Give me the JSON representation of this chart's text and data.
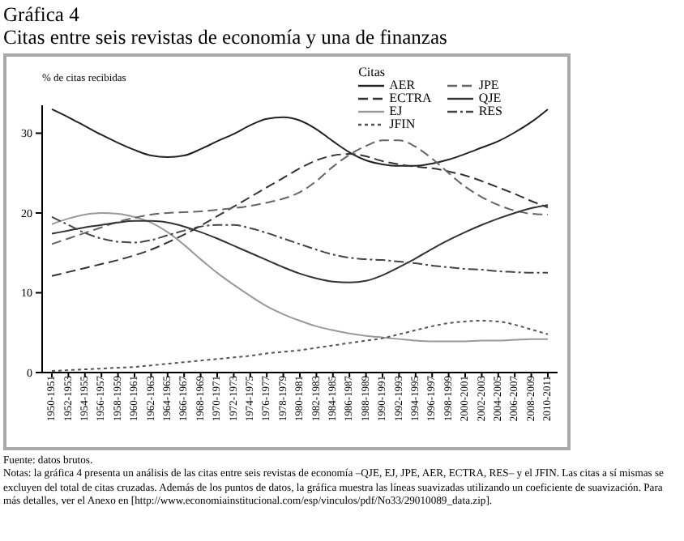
{
  "chart_data": {
    "type": "line",
    "title": "Gráfica 4",
    "subtitle": "Citas entre seis revistas de economía y una de finanzas",
    "ylabel": "% de citas recibidas",
    "legend_title": "Citas",
    "legend": "top right",
    "grid": false,
    "marker": "none",
    "categories": [
      "1950-1951",
      "1952-1953",
      "1954-1955",
      "1956-1957",
      "1958-1959",
      "1960-1961",
      "1962-1963",
      "1964-1965",
      "1966-1967",
      "1968-1969",
      "1970-1971",
      "1972-1973",
      "1974-1975",
      "1976-1977",
      "1978-1979",
      "1980-1981",
      "1982-1983",
      "1984-1985",
      "1986-1987",
      "1988-1989",
      "1990-1991",
      "1992-1993",
      "1994-1995",
      "1996-1997",
      "1998-1999",
      "2000-2001",
      "2002-2003",
      "2004-2005",
      "2006-2007",
      "2008-2009",
      "2010-2011"
    ],
    "ylim": [
      0,
      33.5
    ],
    "yticks": [
      0,
      10,
      20,
      30
    ],
    "series": [
      {
        "name": "AER",
        "color": "#222222",
        "line_style": "solid",
        "values": [
          33,
          32,
          30.9,
          29.8,
          28.8,
          27.9,
          27.2,
          27.0,
          27.2,
          28.0,
          29.0,
          29.9,
          31.0,
          31.8,
          32.0,
          31.6,
          30.5,
          29.0,
          27.6,
          26.6,
          26.1,
          25.9,
          25.9,
          26.2,
          26.7,
          27.4,
          28.2,
          29.0,
          30.1,
          31.4,
          33.0
        ]
      },
      {
        "name": "ECTRA",
        "color": "#333333",
        "line_style": "dashed",
        "values": [
          12.1,
          12.6,
          13.1,
          13.6,
          14.1,
          14.7,
          15.4,
          16.3,
          17.3,
          18.4,
          19.6,
          20.8,
          22.0,
          23.2,
          24.4,
          25.6,
          26.6,
          27.2,
          27.4,
          27.1,
          26.5,
          26.1,
          25.8,
          25.6,
          25.2,
          24.7,
          24.0,
          23.2,
          22.4,
          21.5,
          20.7
        ]
      },
      {
        "name": "EJ",
        "color": "#9a9a9a",
        "line_style": "solid",
        "values": [
          18.6,
          19.3,
          19.8,
          20.0,
          19.9,
          19.5,
          18.8,
          17.6,
          16.0,
          14.2,
          12.5,
          11.0,
          9.6,
          8.3,
          7.3,
          6.5,
          5.8,
          5.3,
          4.9,
          4.6,
          4.4,
          4.2,
          4.0,
          3.9,
          3.9,
          3.9,
          4.0,
          4.0,
          4.1,
          4.2,
          4.2
        ]
      },
      {
        "name": "JFIN",
        "color": "#555555",
        "line_style": "dotted",
        "values": [
          0.2,
          0.3,
          0.4,
          0.5,
          0.6,
          0.7,
          0.9,
          1.1,
          1.3,
          1.5,
          1.7,
          1.9,
          2.1,
          2.4,
          2.6,
          2.8,
          3.1,
          3.4,
          3.7,
          4.0,
          4.3,
          4.8,
          5.3,
          5.8,
          6.2,
          6.4,
          6.5,
          6.4,
          6.0,
          5.4,
          4.8
        ]
      },
      {
        "name": "JPE",
        "color": "#666666",
        "line_style": "dashed",
        "values": [
          16.1,
          16.8,
          17.5,
          18.2,
          18.9,
          19.4,
          19.8,
          20.0,
          20.1,
          20.2,
          20.4,
          20.6,
          20.9,
          21.3,
          21.8,
          22.6,
          24.0,
          25.8,
          27.3,
          28.4,
          29.1,
          29.1,
          28.3,
          26.8,
          25.0,
          23.3,
          22.0,
          21.0,
          20.3,
          19.9,
          19.8
        ]
      },
      {
        "name": "QJE",
        "color": "#333333",
        "line_style": "solid",
        "values": [
          17.4,
          17.8,
          18.2,
          18.5,
          18.8,
          19.0,
          19.0,
          18.8,
          18.3,
          17.6,
          16.8,
          15.9,
          15.0,
          14.1,
          13.2,
          12.4,
          11.8,
          11.4,
          11.3,
          11.5,
          12.2,
          13.2,
          14.3,
          15.5,
          16.6,
          17.6,
          18.5,
          19.3,
          20.0,
          20.6,
          21.0
        ]
      },
      {
        "name": "RES",
        "color": "#444444",
        "line_style": "dashdot",
        "values": [
          19.5,
          18.5,
          17.5,
          16.8,
          16.4,
          16.3,
          16.6,
          17.2,
          17.8,
          18.3,
          18.5,
          18.5,
          18.1,
          17.5,
          16.8,
          16.1,
          15.4,
          14.8,
          14.4,
          14.2,
          14.1,
          13.9,
          13.7,
          13.4,
          13.2,
          13.0,
          12.9,
          12.7,
          12.6,
          12.5,
          12.5
        ]
      }
    ],
    "annotations": [
      "Fuente: datos brutos.",
      "Notas: la gráfica 4 presenta un análisis de las citas entre seis revistas de economía –QJE, EJ, JPE, AER, ECTRA, RES– y el JFIN. Las citas a sí mismas se excluyen del total de citas cruzadas. Además de los puntos de datos, la gráfica muestra las líneas suavizadas utilizando un coeficiente de suavización. Para más detalles, ver el Anexo en [http://www.economiainstitucional.com/esp/vinculos/pdf/No33/29010089_data.zip]."
    ]
  }
}
